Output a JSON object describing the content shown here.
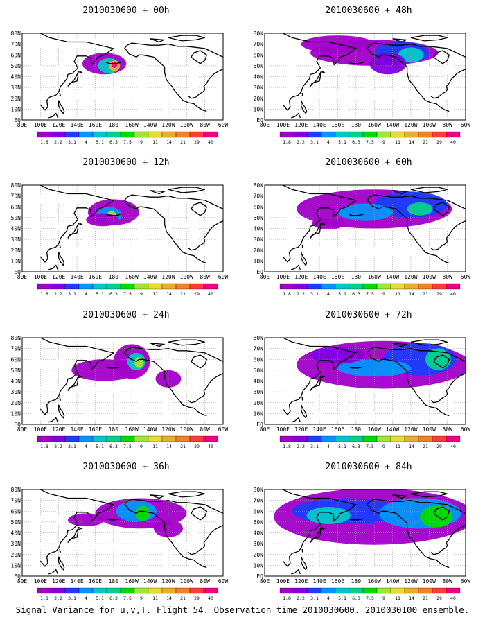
{
  "panels": [
    {
      "title": "2010030600 + 00h",
      "coverage": 0.2,
      "peak": "centre"
    },
    {
      "title": "2010030600 + 12h",
      "coverage": 0.25,
      "peak": "mid"
    },
    {
      "title": "2010030600 + 24h",
      "coverage": 0.35,
      "peak": "mid"
    },
    {
      "title": "2010030600 + 36h",
      "coverage": 0.5,
      "peak": "mid"
    },
    {
      "title": "2010030600 + 48h",
      "coverage": 0.55,
      "peak": "mid"
    },
    {
      "title": "2010030600 + 60h",
      "coverage": 0.7,
      "peak": "mid"
    },
    {
      "title": "2010030600 + 72h",
      "coverage": 0.8,
      "peak": "mid"
    },
    {
      "title": "2010030600 + 84h",
      "coverage": 0.9,
      "peak": "mid"
    }
  ],
  "lat_labels": [
    "80N",
    "70N",
    "60N",
    "50N",
    "40N",
    "30N",
    "20N",
    "10N",
    "EQ"
  ],
  "lon_labels": [
    "80E",
    "100E",
    "120E",
    "140E",
    "160E",
    "180",
    "160W",
    "140W",
    "120W",
    "100W",
    "80W",
    "60W"
  ],
  "colorbar": {
    "labels": [
      "1.8",
      "2.2",
      "3.1",
      "4",
      "5.1",
      "6.3",
      "7.5",
      "9",
      "11",
      "14",
      "21",
      "29",
      "40"
    ],
    "colors": [
      "#a000c8",
      "#8200dc",
      "#1e3cff",
      "#0096ff",
      "#00c8c8",
      "#00d28c",
      "#00dc00",
      "#a0e632",
      "#e6dc32",
      "#e6af2d",
      "#f08228",
      "#fa3c3c",
      "#f00082"
    ]
  },
  "footer": "Signal Variance for u,v,T. Flight 54. Observation time 2010030600. 2010030100 ensemble."
}
